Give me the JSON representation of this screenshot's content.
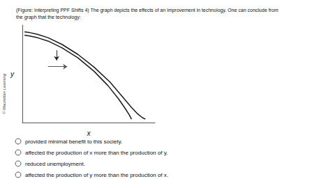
{
  "chart_data": {
    "type": "line",
    "title": "(Figure: Interpreting PPF Shifts 4) The graph depicts the effects of an improvement in technology. One can conclude from\nthe graph that the technology:",
    "xlabel": "x",
    "ylabel": "y",
    "series": [
      {
        "color": "#1a1a1a",
        "x": [
          0.0,
          0.05,
          0.12,
          0.22,
          0.35,
          0.5,
          0.65,
          0.78,
          0.88,
          0.94,
          0.98,
          1.0
        ],
        "values": [
          1.0,
          0.99,
          0.97,
          0.93,
          0.85,
          0.73,
          0.57,
          0.4,
          0.24,
          0.13,
          0.05,
          0.0
        ]
      },
      {
        "color": "#1a1a1a",
        "x": [
          0.0,
          0.05,
          0.12,
          0.22,
          0.35,
          0.5,
          0.65,
          0.8,
          0.92,
          1.0,
          1.06,
          1.1,
          1.13
        ],
        "values": [
          1.04,
          1.03,
          1.01,
          0.97,
          0.89,
          0.77,
          0.62,
          0.44,
          0.26,
          0.14,
          0.06,
          0.02,
          0.0
        ]
      }
    ],
    "arrows": [
      {
        "x": [
          0.3,
          0.3
        ],
        "y": [
          0.82,
          0.7
        ],
        "color": "#222222"
      },
      {
        "x": [
          0.22,
          0.4
        ],
        "y": [
          0.625,
          0.625
        ],
        "color": "#555555"
      }
    ],
    "xlim": [
      -0.02,
      1.22
    ],
    "ylim": [
      -0.04,
      1.12
    ],
    "xticks": [],
    "yticks": [],
    "tick_labels": false,
    "grid": false,
    "annotations": [
      "© Macmillan Learning"
    ],
    "options": [
      "provided minimal benefit to this society.",
      "affected the production of x more than the production of y.",
      "reduced unemployment.",
      "affected the production of y more than the production of x."
    ]
  }
}
